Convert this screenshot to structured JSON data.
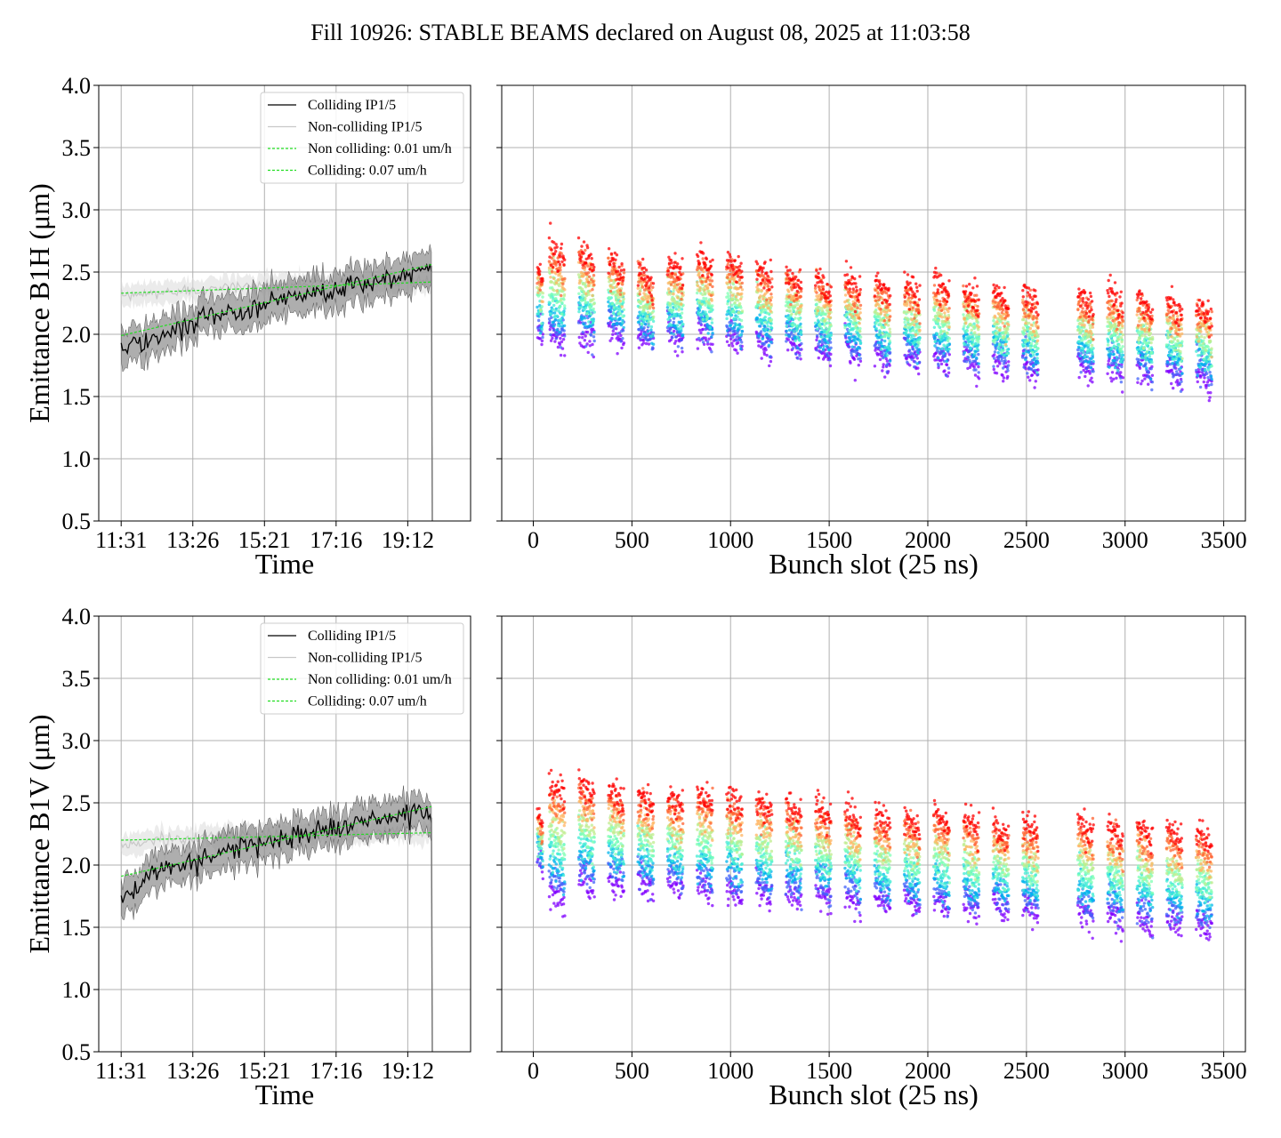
{
  "figure": {
    "suptitle": "Fill 10926: STABLE BEAMS declared on August 08, 2025 at 11:03:58"
  },
  "chart_data": [
    {
      "id": "b1h-time",
      "type": "line",
      "title": "",
      "xlabel": "Time",
      "ylabel": "Emittance B1H (μm)",
      "ylim": [
        0.5,
        4.0
      ],
      "yticks": [
        "0.5",
        "1.0",
        "1.5",
        "2.0",
        "2.5",
        "3.0",
        "3.5",
        "4.0"
      ],
      "x_ticks": [
        "11:31",
        "13:26",
        "15:21",
        "17:16",
        "19:12"
      ],
      "grid": true,
      "legend_position": "top-right",
      "legend": [
        "Colliding IP1/5",
        "Non-colliding IP1/5",
        "Non colliding: 0.01 um/h",
        "Colliding: 0.07 um/h"
      ],
      "series": [
        {
          "name": "Colliding IP1/5",
          "color": "#000000",
          "x_hours": [
            0.0,
            0.5,
            1.0,
            1.5,
            2.0,
            2.5,
            3.0,
            3.5,
            4.0,
            4.5,
            5.0,
            5.5,
            6.0,
            6.5,
            7.0,
            7.5,
            8.0,
            8.3
          ],
          "y": [
            1.9,
            1.93,
            1.97,
            2.03,
            2.1,
            2.15,
            2.18,
            2.22,
            2.26,
            2.3,
            2.33,
            2.35,
            2.37,
            2.4,
            2.43,
            2.46,
            2.5,
            2.55
          ]
        },
        {
          "name": "Non-colliding IP1/5",
          "color": "#c8c8c8",
          "x_hours": [
            0.0,
            0.5,
            1.0,
            1.5,
            2.0,
            2.5,
            3.0,
            3.5,
            4.0,
            4.5,
            5.0,
            5.5,
            6.0,
            6.5,
            7.0,
            7.5,
            8.0,
            8.3
          ],
          "y": [
            2.3,
            2.32,
            2.33,
            2.35,
            2.36,
            2.37,
            2.38,
            2.38,
            2.39,
            2.39,
            2.4,
            2.4,
            2.4,
            2.41,
            2.42,
            2.42,
            2.43,
            2.43
          ]
        },
        {
          "name": "Non colliding: 0.01 um/h",
          "color": "#22dd22",
          "style": "dashed",
          "x_hours": [
            0.0,
            8.3
          ],
          "y": [
            2.33,
            2.42
          ]
        },
        {
          "name": "Colliding: 0.07 um/h",
          "color": "#22dd22",
          "style": "dashed",
          "x_hours": [
            0.0,
            8.3
          ],
          "y": [
            1.99,
            2.56
          ]
        }
      ]
    },
    {
      "id": "b1h-bunch",
      "type": "scatter",
      "title": "",
      "xlabel": "Bunch slot (25 ns)",
      "ylabel": "",
      "xlim": [
        -160,
        3610
      ],
      "ylim": [
        0.5,
        4.0
      ],
      "xticks": [
        0,
        500,
        1000,
        1500,
        2000,
        2500,
        3000,
        3500
      ],
      "grid": true,
      "colormap": "rainbow",
      "trains_start": [
        0,
        60,
        210,
        360,
        510,
        660,
        810,
        960,
        1110,
        1260,
        1410,
        1560,
        1710,
        1860,
        2010,
        2160,
        2310,
        2460,
        2740,
        2890,
        3040,
        3190,
        3340
      ],
      "train_length": 80,
      "first_points_y": [
        2.45,
        2.6,
        2.55,
        2.5,
        2.4,
        2.45,
        2.5,
        2.48,
        2.42,
        2.38,
        2.35,
        2.32,
        2.3,
        2.28,
        2.3,
        2.25,
        2.22,
        2.2,
        2.2,
        2.2,
        2.18,
        2.15,
        2.12
      ],
      "last_points_y": [
        1.95,
        1.9,
        1.92,
        1.95,
        1.9,
        1.92,
        1.93,
        1.9,
        1.85,
        1.85,
        1.8,
        1.78,
        1.75,
        1.75,
        1.72,
        1.7,
        1.7,
        1.68,
        1.65,
        1.65,
        1.63,
        1.62,
        1.6
      ]
    },
    {
      "id": "b1v-time",
      "type": "line",
      "title": "",
      "xlabel": "Time",
      "ylabel": "Emittance B1V (μm)",
      "ylim": [
        0.5,
        4.0
      ],
      "yticks": [
        "0.5",
        "1.0",
        "1.5",
        "2.0",
        "2.5",
        "3.0",
        "3.5",
        "4.0"
      ],
      "x_ticks": [
        "11:31",
        "13:26",
        "15:21",
        "17:16",
        "19:12"
      ],
      "grid": true,
      "legend_position": "top-right",
      "legend": [
        "Colliding IP1/5",
        "Non-colliding IP1/5",
        "Non colliding: 0.01 um/h",
        "Colliding: 0.07 um/h"
      ],
      "series": [
        {
          "name": "Colliding IP1/5",
          "color": "#000000",
          "x_hours": [
            0.0,
            0.5,
            1.0,
            1.5,
            2.0,
            2.5,
            3.0,
            3.5,
            4.0,
            4.5,
            5.0,
            5.5,
            6.0,
            6.5,
            7.0,
            7.5,
            8.0,
            8.3
          ],
          "y": [
            1.72,
            1.85,
            1.93,
            1.98,
            2.03,
            2.08,
            2.12,
            2.16,
            2.2,
            2.23,
            2.27,
            2.3,
            2.33,
            2.36,
            2.38,
            2.4,
            2.42,
            2.38
          ]
        },
        {
          "name": "Non-colliding IP1/5",
          "color": "#c8c8c8",
          "x_hours": [
            0.0,
            0.5,
            1.0,
            1.5,
            2.0,
            2.5,
            3.0,
            3.5,
            4.0,
            4.5,
            5.0,
            5.5,
            6.0,
            6.5,
            7.0,
            7.5,
            8.0,
            8.3
          ],
          "y": [
            2.15,
            2.18,
            2.2,
            2.21,
            2.22,
            2.22,
            2.23,
            2.23,
            2.24,
            2.24,
            2.25,
            2.25,
            2.26,
            2.26,
            2.27,
            2.27,
            2.27,
            2.26
          ]
        },
        {
          "name": "Non colliding: 0.01 um/h",
          "color": "#22dd22",
          "style": "dashed",
          "x_hours": [
            0.0,
            8.3
          ],
          "y": [
            2.2,
            2.26
          ]
        },
        {
          "name": "Colliding: 0.07 um/h",
          "color": "#22dd22",
          "style": "dashed",
          "x_hours": [
            0.0,
            8.3
          ],
          "y": [
            1.91,
            2.47
          ]
        }
      ]
    },
    {
      "id": "b1v-bunch",
      "type": "scatter",
      "title": "",
      "xlabel": "Bunch slot (25 ns)",
      "ylabel": "",
      "xlim": [
        -160,
        3610
      ],
      "ylim": [
        0.5,
        4.0
      ],
      "xticks": [
        0,
        500,
        1000,
        1500,
        2000,
        2500,
        3000,
        3500
      ],
      "grid": true,
      "colormap": "rainbow",
      "trains_start": [
        0,
        60,
        210,
        360,
        510,
        660,
        810,
        960,
        1110,
        1260,
        1410,
        1560,
        1710,
        1860,
        2010,
        2160,
        2310,
        2460,
        2740,
        2890,
        3040,
        3190,
        3340
      ],
      "train_length": 80,
      "first_points_y": [
        2.3,
        2.55,
        2.55,
        2.5,
        2.45,
        2.45,
        2.48,
        2.45,
        2.42,
        2.38,
        2.35,
        2.32,
        2.3,
        2.28,
        2.3,
        2.25,
        2.23,
        2.22,
        2.22,
        2.2,
        2.2,
        2.18,
        2.15
      ],
      "last_points_y": [
        1.95,
        1.7,
        1.8,
        1.8,
        1.78,
        1.78,
        1.75,
        1.72,
        1.7,
        1.7,
        1.68,
        1.68,
        1.65,
        1.65,
        1.62,
        1.6,
        1.6,
        1.58,
        1.55,
        1.52,
        1.5,
        1.48,
        1.45
      ]
    }
  ]
}
